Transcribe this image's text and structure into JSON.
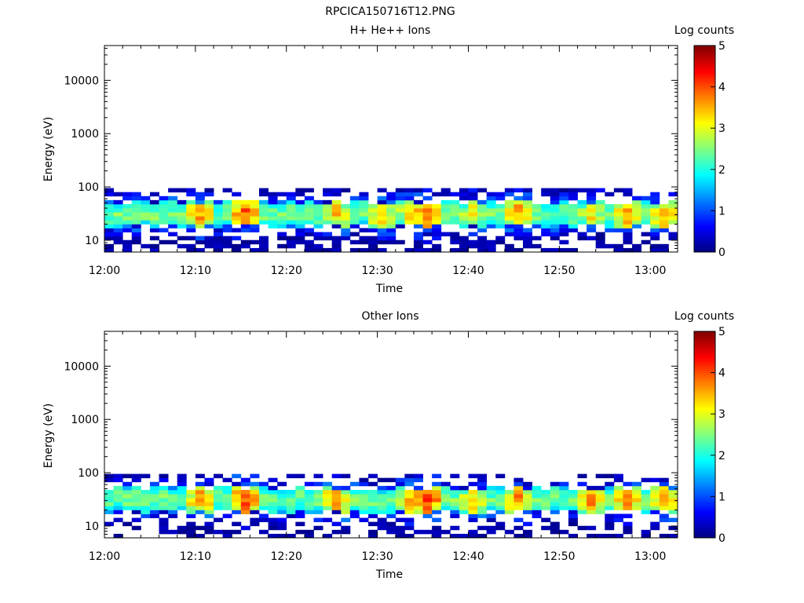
{
  "page": {
    "title": "RPCICA150716T12.PNG"
  },
  "chart_data": [
    {
      "type": "heatmap",
      "title": "H+ He++ Ions",
      "xlabel": "Time",
      "ylabel": "Energy (eV)",
      "xticks": [
        "12:00",
        "12:10",
        "12:20",
        "12:30",
        "12:40",
        "12:50",
        "13:00"
      ],
      "xlim": [
        "12:00",
        "13:03"
      ],
      "yscale": "log",
      "yticks": [
        "10",
        "100",
        "1000",
        "10000"
      ],
      "ylim": [
        6,
        45000
      ],
      "data_energy_range": [
        6,
        95
      ],
      "colorbar": {
        "label": "Log counts",
        "ticks": [
          "0",
          "1",
          "2",
          "3",
          "4",
          "5"
        ],
        "range": [
          0,
          5
        ],
        "colormap": "jet"
      },
      "peak_times_minutes": [
        3,
        10,
        15,
        25,
        30,
        33,
        35,
        40,
        45,
        53,
        57,
        61
      ],
      "peak_levels": [
        2.6,
        3.6,
        3.9,
        3.4,
        3.5,
        3.2,
        3.9,
        3.2,
        3.6,
        3.2,
        3.6,
        3.6
      ],
      "fill_fraction": 0.55
    },
    {
      "type": "heatmap",
      "title": "Other Ions",
      "xlabel": "Time",
      "ylabel": "Energy (eV)",
      "xticks": [
        "12:00",
        "12:10",
        "12:20",
        "12:30",
        "12:40",
        "12:50",
        "13:00"
      ],
      "xlim": [
        "12:00",
        "13:03"
      ],
      "yscale": "log",
      "yticks": [
        "10",
        "100",
        "1000",
        "10000"
      ],
      "ylim": [
        6,
        45000
      ],
      "data_energy_range": [
        6,
        95
      ],
      "colorbar": {
        "label": "Log counts",
        "ticks": [
          "0",
          "1",
          "2",
          "3",
          "4",
          "5"
        ],
        "range": [
          0,
          5
        ],
        "colormap": "jet"
      },
      "peak_times_minutes": [
        3,
        10,
        15,
        25,
        33,
        35,
        40,
        45,
        53,
        57,
        61
      ],
      "peak_levels": [
        2.6,
        3.6,
        4.0,
        3.6,
        3.4,
        4.1,
        3.4,
        3.7,
        3.6,
        3.7,
        3.6
      ],
      "fill_fraction": 0.4
    }
  ]
}
